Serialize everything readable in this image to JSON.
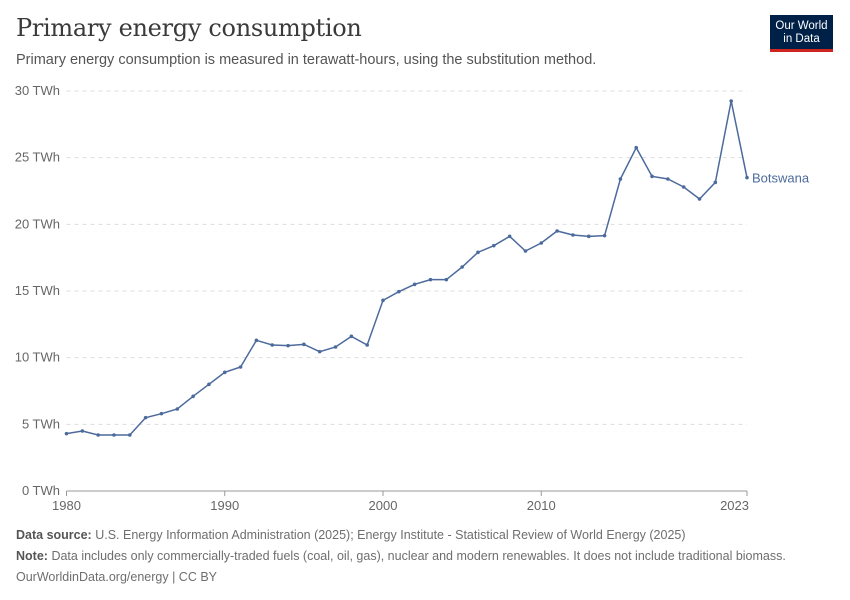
{
  "header": {
    "title": "Primary energy consumption",
    "subtitle": "Primary energy consumption is measured in terawatt-hours, using the substitution method.",
    "logo_text": "Our World in Data"
  },
  "chart_data": {
    "type": "line",
    "title": "Primary energy consumption",
    "xlabel": "",
    "ylabel": "",
    "xlim": [
      1980,
      2023
    ],
    "ylim": [
      0,
      30
    ],
    "grid": true,
    "legend": "right (inline label)",
    "x_ticks": [
      "1980",
      "1990",
      "2000",
      "2010",
      "2023"
    ],
    "y_ticks": [
      "0 TWh",
      "5 TWh",
      "10 TWh",
      "15 TWh",
      "20 TWh",
      "25 TWh",
      "30 TWh"
    ],
    "color": "#4c6a9c",
    "series": [
      {
        "name": "Botswana",
        "x": [
          1980,
          1981,
          1982,
          1983,
          1984,
          1985,
          1986,
          1987,
          1988,
          1989,
          1990,
          1991,
          1992,
          1993,
          1994,
          1995,
          1996,
          1997,
          1998,
          1999,
          2000,
          2001,
          2002,
          2003,
          2004,
          2005,
          2006,
          2007,
          2008,
          2009,
          2010,
          2011,
          2012,
          2013,
          2014,
          2015,
          2016,
          2017,
          2018,
          2019,
          2020,
          2021,
          2022,
          2023
        ],
        "values": [
          4.3,
          4.5,
          4.2,
          4.2,
          4.2,
          5.5,
          5.8,
          6.15,
          7.1,
          8.0,
          8.9,
          9.3,
          11.3,
          10.95,
          10.9,
          11.0,
          10.45,
          10.8,
          11.6,
          10.95,
          14.3,
          14.95,
          15.5,
          15.85,
          15.85,
          16.8,
          17.9,
          18.4,
          19.1,
          18.0,
          18.6,
          19.5,
          19.2,
          19.1,
          19.15,
          23.4,
          25.75,
          23.6,
          23.4,
          22.8,
          21.9,
          23.15,
          29.25,
          23.5
        ]
      }
    ]
  },
  "footer": {
    "source_label": "Data source:",
    "source": "U.S. Energy Information Administration (2025); Energy Institute - Statistical Review of World Energy (2025)",
    "note_label": "Note:",
    "note": "Data includes only commercially-traded fuels (coal, oil, gas), nuclear and modern renewables. It does not include traditional biomass.",
    "link": "OurWorldinData.org/energy | CC BY"
  }
}
